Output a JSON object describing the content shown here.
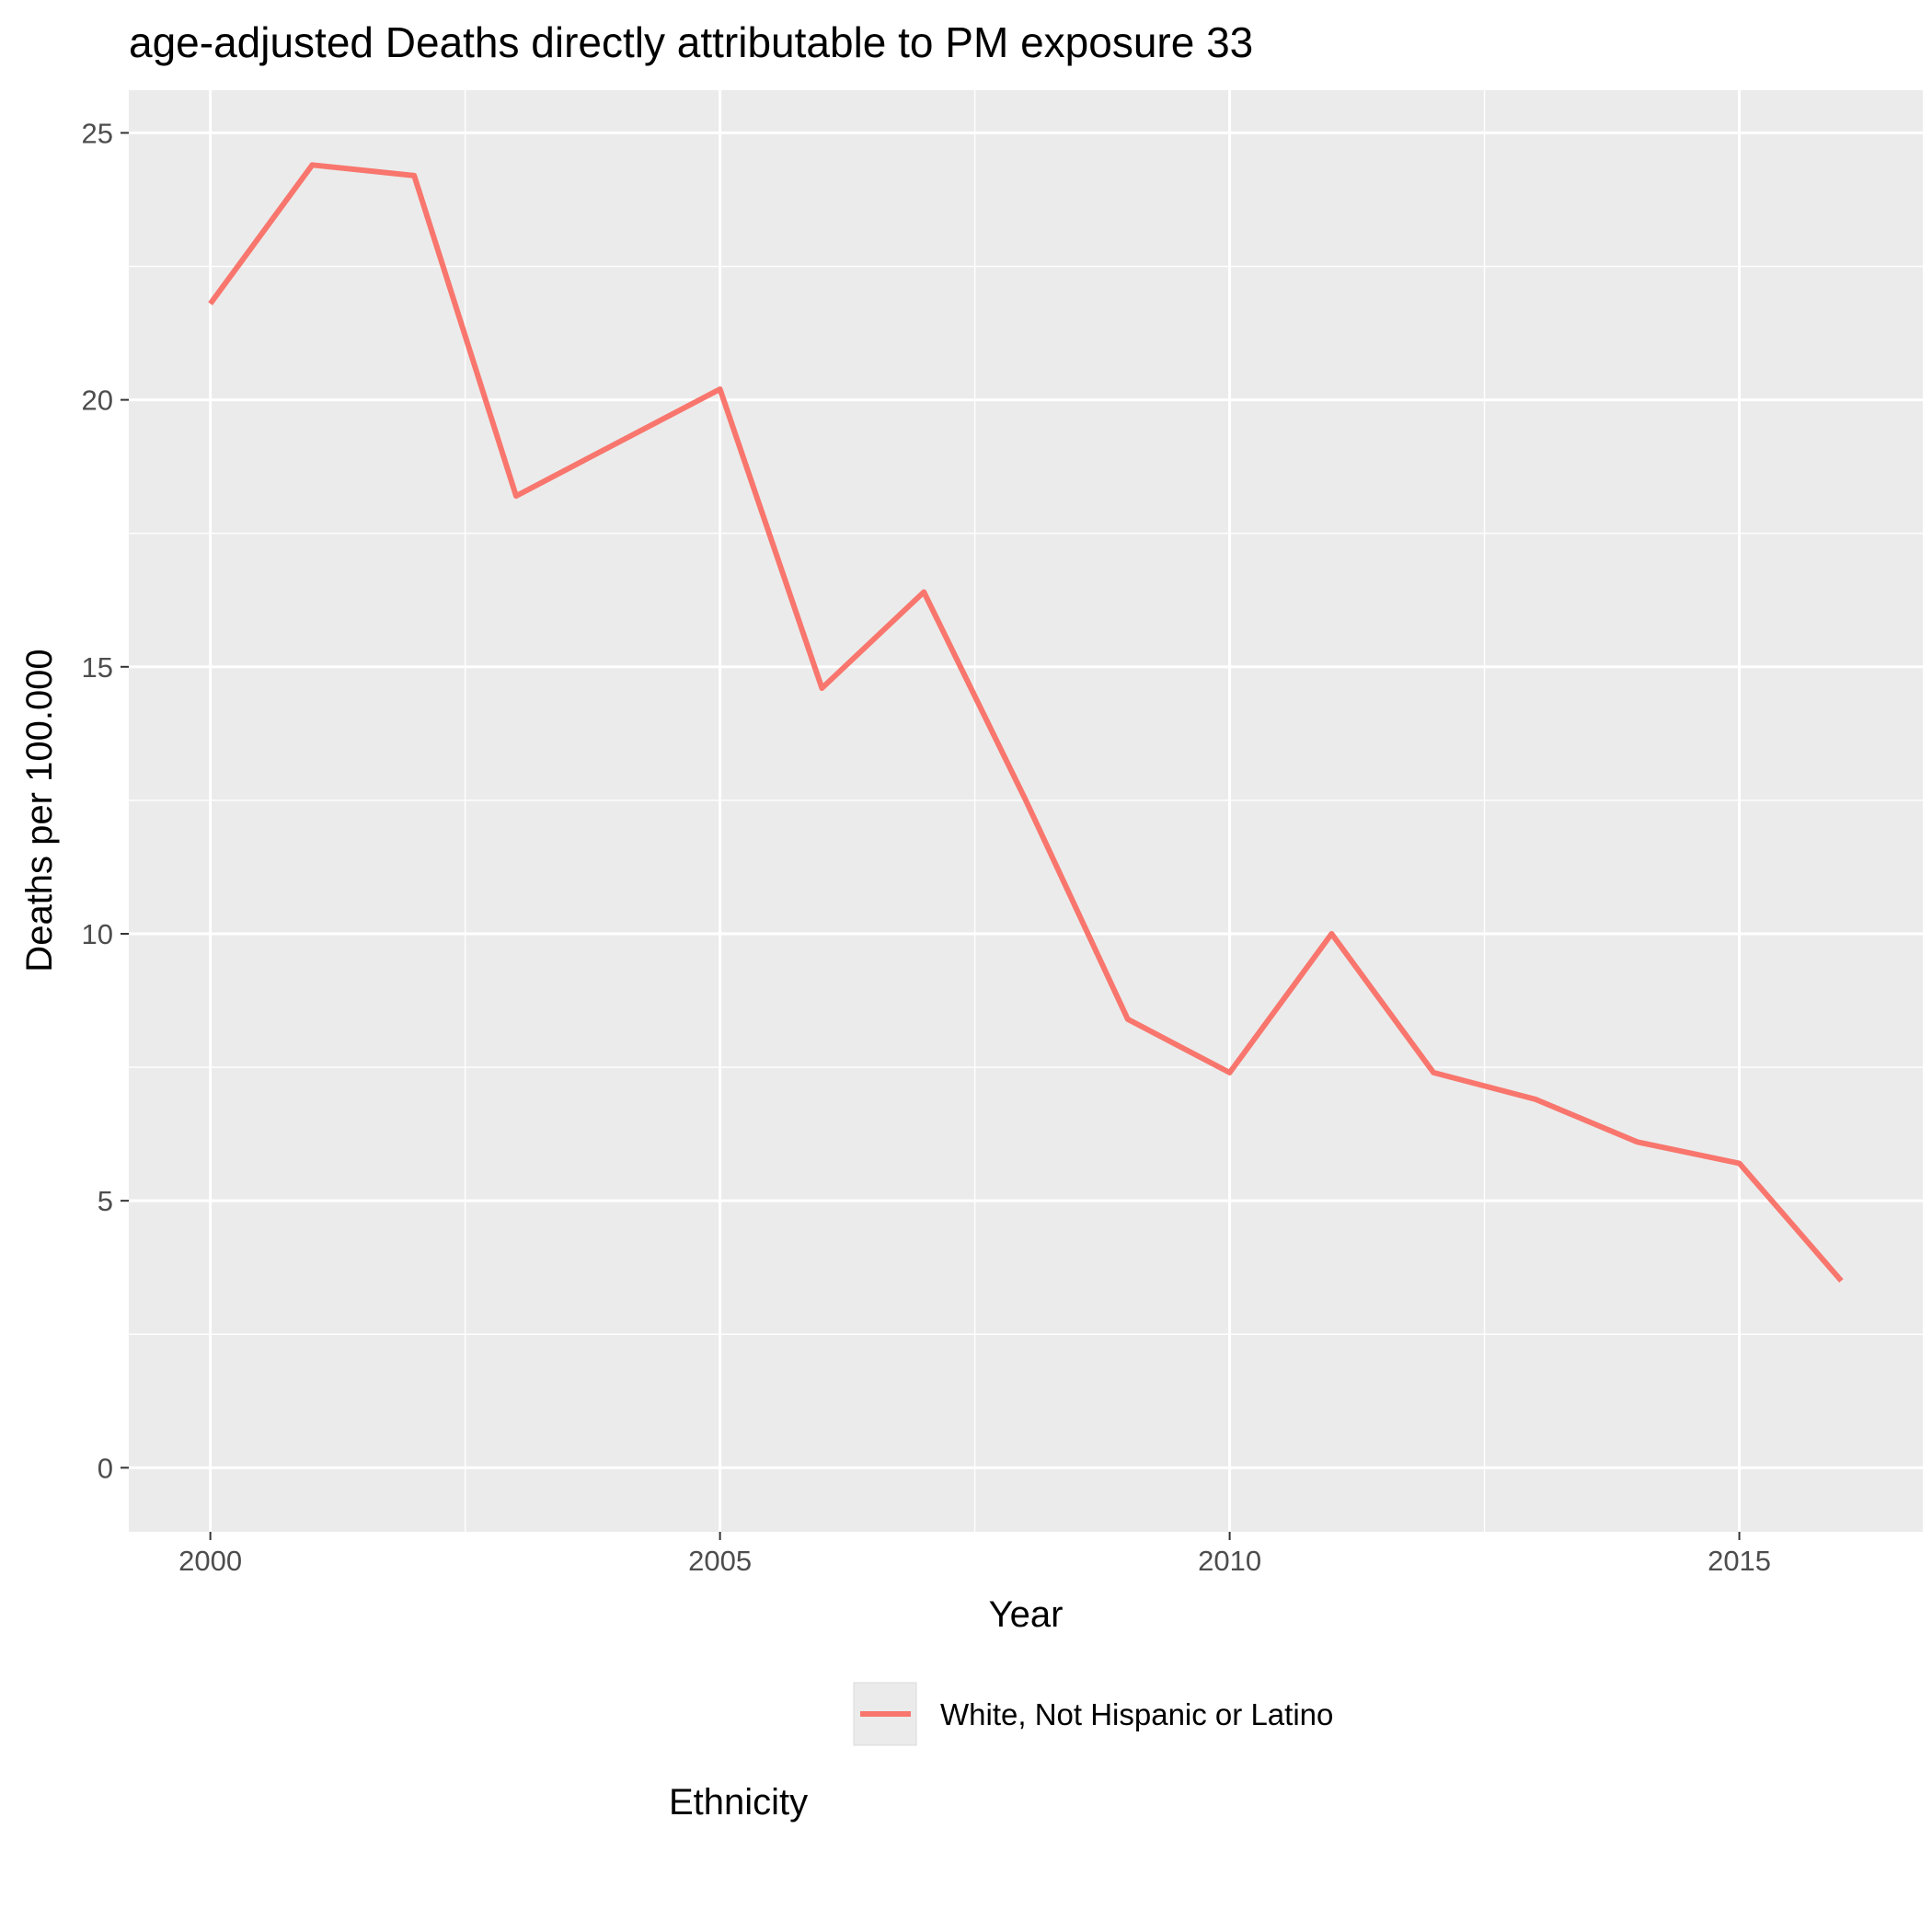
{
  "chart_data": {
    "type": "line",
    "title": "age-adjusted Deaths directly attributable to PM exposure 33",
    "xlabel": "Year",
    "ylabel": "Deaths per 100.000",
    "x_ticks": [
      2000,
      2005,
      2010,
      2015
    ],
    "y_ticks": [
      0,
      5,
      10,
      15,
      20,
      25
    ],
    "xlim": [
      1999.2,
      2016.8
    ],
    "ylim": [
      -1.2,
      25.8
    ],
    "grid": true,
    "legend": {
      "title": "Ethnicity",
      "placement": "bottom",
      "entries": [
        "White, Not Hispanic or Latino"
      ]
    },
    "series": [
      {
        "name": "White, Not Hispanic or Latino",
        "color": "#f8766d",
        "x": [
          2000,
          2001,
          2002,
          2003,
          2004,
          2005,
          2006,
          2007,
          2008,
          2009,
          2010,
          2011,
          2012,
          2013,
          2014,
          2015,
          2016
        ],
        "values": [
          21.8,
          24.4,
          24.2,
          18.2,
          19.2,
          20.2,
          14.6,
          16.4,
          12.5,
          8.4,
          7.4,
          10.0,
          7.4,
          6.9,
          6.1,
          5.7,
          3.5
        ]
      }
    ]
  }
}
